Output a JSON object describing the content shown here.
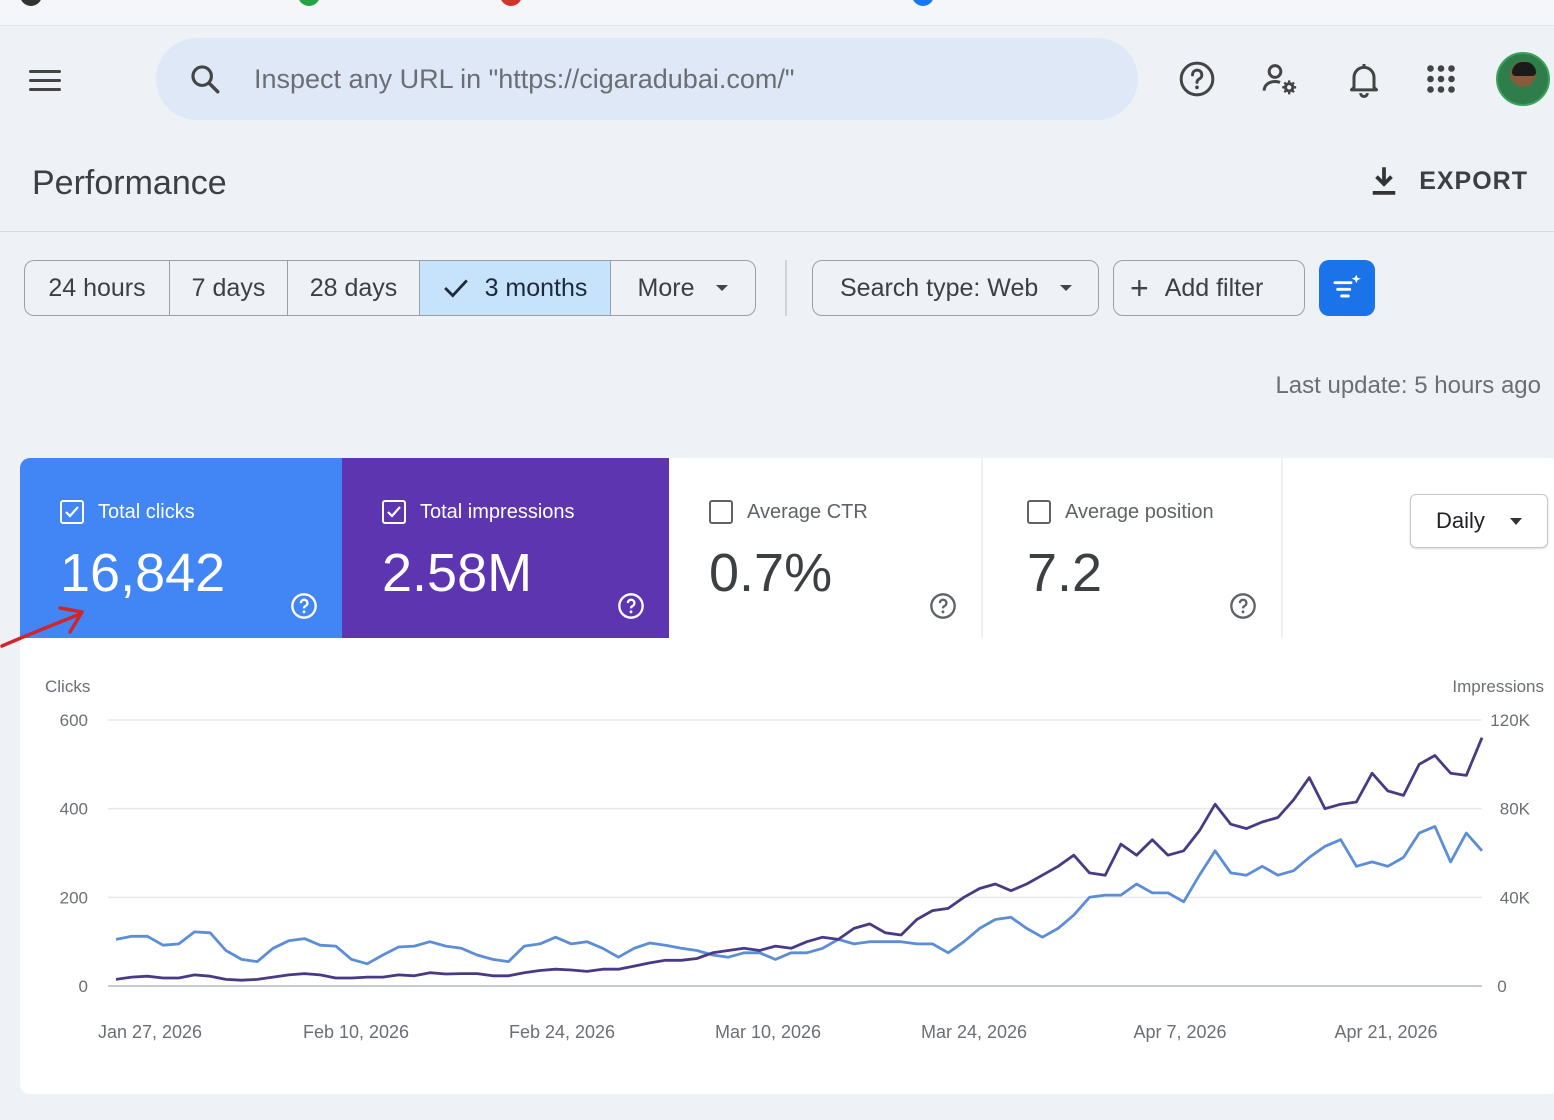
{
  "search": {
    "placeholder": "Inspect any URL in \"https://cigaradubai.com/\""
  },
  "page": {
    "title": "Performance",
    "export_label": "EXPORT"
  },
  "date_range": {
    "options": [
      "24 hours",
      "7 days",
      "28 days",
      "3 months",
      "More"
    ],
    "selected": "3 months"
  },
  "filters": {
    "search_type": "Search type: Web",
    "add_filter": "Add filter"
  },
  "last_update": "Last update: 5 hours ago",
  "metrics": {
    "clicks": {
      "label": "Total clicks",
      "value": "16,842",
      "checked": true,
      "color": "#4285f4"
    },
    "impressions": {
      "label": "Total impressions",
      "value": "2.58M",
      "checked": true,
      "color": "#5e35b1"
    },
    "ctr": {
      "label": "Average CTR",
      "value": "0.7%",
      "checked": false
    },
    "position": {
      "label": "Average position",
      "value": "7.2",
      "checked": false
    }
  },
  "granularity": "Daily",
  "chart_data": {
    "type": "line",
    "ylabel_left": "Clicks",
    "ylabel_right": "Impressions",
    "ylim_left": [
      0,
      600
    ],
    "ylim_right": [
      0,
      120000
    ],
    "yticks_left": [
      "0",
      "200",
      "400",
      "600"
    ],
    "yticks_right": [
      "0",
      "40K",
      "80K",
      "120K"
    ],
    "xtick_labels": [
      "Jan 27, 2026",
      "Feb 10, 2026",
      "Feb 24, 2026",
      "Mar 10, 2026",
      "Mar 24, 2026",
      "Apr 7, 2026",
      "Apr 21, 2026"
    ],
    "x_start": "Jan 27, 2026",
    "x_end": "Apr 25, 2026",
    "grid": true,
    "series": [
      {
        "name": "Clicks",
        "axis": "left",
        "color": "#5b8ed6",
        "values": [
          105,
          112,
          112,
          92,
          95,
          122,
          120,
          80,
          60,
          55,
          85,
          102,
          107,
          92,
          90,
          60,
          50,
          70,
          88,
          90,
          100,
          90,
          85,
          70,
          60,
          55,
          90,
          95,
          110,
          95,
          100,
          85,
          65,
          85,
          97,
          92,
          85,
          80,
          70,
          65,
          75,
          75,
          60,
          75,
          75,
          85,
          105,
          95,
          100,
          100,
          100,
          95,
          95,
          75,
          100,
          130,
          150,
          155,
          130,
          110,
          130,
          160,
          200,
          205,
          205,
          230,
          210,
          210,
          190,
          250,
          305,
          255,
          250,
          270,
          250,
          260,
          290,
          315,
          330,
          270,
          280,
          270,
          290,
          345,
          360,
          280,
          345,
          305
        ]
      },
      {
        "name": "Impressions",
        "axis": "left",
        "color": "#4a3a86",
        "values": [
          15,
          20,
          22,
          18,
          18,
          25,
          22,
          15,
          13,
          15,
          20,
          25,
          28,
          25,
          18,
          18,
          20,
          20,
          25,
          23,
          30,
          27,
          28,
          28,
          23,
          23,
          30,
          35,
          38,
          36,
          33,
          38,
          38,
          45,
          52,
          58,
          58,
          62,
          75,
          80,
          85,
          80,
          90,
          85,
          100,
          110,
          105,
          130,
          140,
          120,
          115,
          150,
          170,
          175,
          200,
          220,
          230,
          215,
          230,
          250,
          270,
          295,
          255,
          250,
          320,
          295,
          330,
          295,
          305,
          350,
          410,
          365,
          355,
          370,
          380,
          420,
          470,
          400,
          410,
          415,
          480,
          440,
          430,
          500,
          520,
          480,
          475,
          560
        ]
      }
    ]
  },
  "colors": {
    "accent": "#1a73e8",
    "active_segment": "#c7e2fb"
  }
}
